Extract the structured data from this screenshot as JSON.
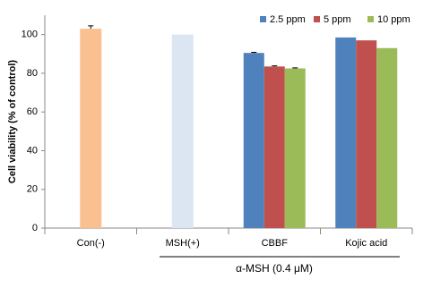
{
  "chart_data": {
    "type": "bar",
    "categories": [
      "Con(-)",
      "MSH(+)",
      "CBBF",
      "Kojic acid"
    ],
    "y_label": "Cell viability (% of control)",
    "group_label": "α-MSH (0.4 μM)",
    "ylim": [
      0,
      110
    ],
    "yticks": [
      0,
      20,
      40,
      60,
      80,
      100
    ],
    "single_bars": {
      "colors": [
        "#FAC090",
        "#DCE6F2",
        null,
        null
      ],
      "values": [
        103,
        100,
        null,
        null
      ],
      "errors": [
        1.5,
        null,
        null,
        null
      ]
    },
    "series": [
      {
        "name": "2.5 ppm",
        "color": "#4F81BD",
        "values": [
          null,
          null,
          90.5,
          98.5
        ],
        "errors": [
          null,
          null,
          0.3,
          null
        ]
      },
      {
        "name": "5 ppm",
        "color": "#C0504D",
        "values": [
          null,
          null,
          83.5,
          97
        ],
        "errors": [
          null,
          null,
          0.3,
          null
        ]
      },
      {
        "name": "10 ppm",
        "color": "#9BBB59",
        "values": [
          null,
          null,
          82.5,
          93
        ],
        "errors": [
          null,
          null,
          0.3,
          null
        ]
      }
    ]
  }
}
